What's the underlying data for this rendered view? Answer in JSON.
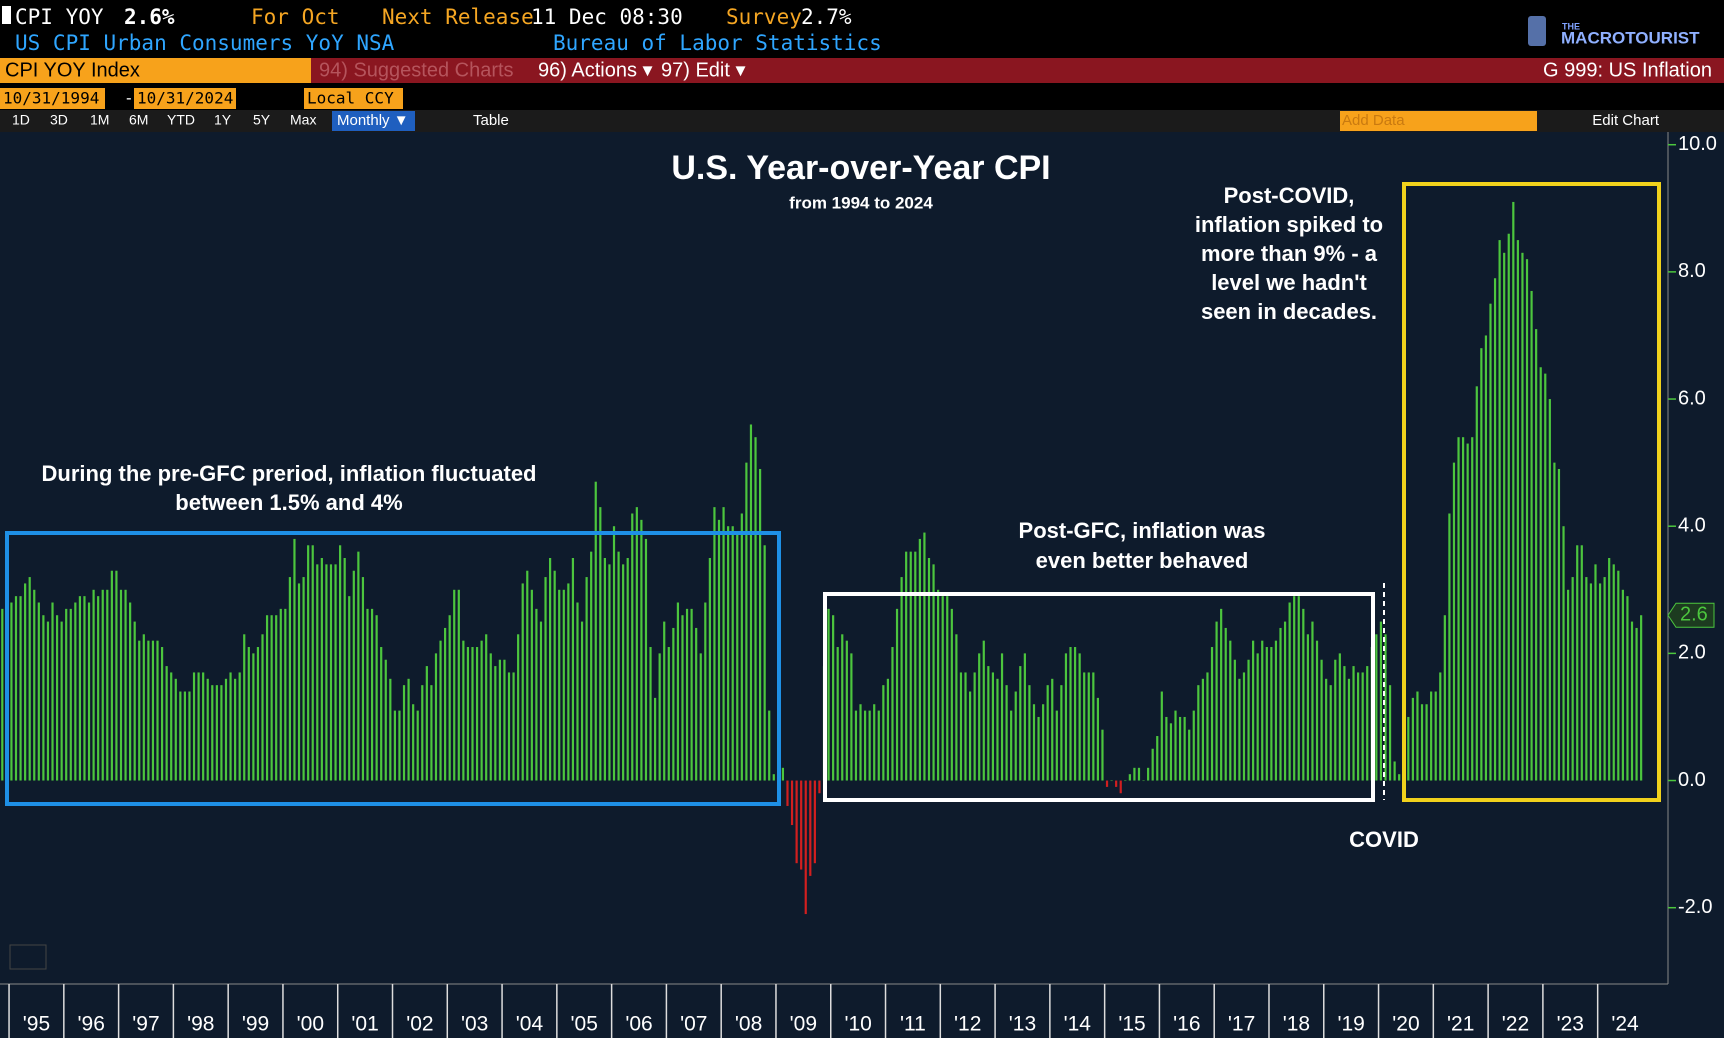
{
  "terminal": {
    "ticker": "CPI YOY",
    "last": "2.6%",
    "period": "For Oct",
    "next_release_label": "Next Release",
    "next_release": "11 Dec 08:30",
    "survey_label": "Survey",
    "survey": "2.7%",
    "description": "US CPI Urban Consumers YoY NSA",
    "source": "Bureau of Labor Statistics",
    "logo_small": "THE",
    "logo": "MACROTOURIST",
    "security": "CPI YOY Index",
    "menu": [
      "94) Suggested Charts",
      "96) Actions ▾",
      "97) Edit ▾"
    ],
    "page": "G 999: US Inflation",
    "start_date": "10/31/1994",
    "date_sep": "-",
    "end_date": "10/31/2024",
    "currency": "Local CCY",
    "ranges": [
      "1D",
      "3D",
      "1M",
      "6M",
      "YTD",
      "1Y",
      "5Y",
      "Max"
    ],
    "frequency": "Monthly ▼",
    "table": "Table",
    "add_data": "Add Data",
    "edit_chart": "Edit Chart"
  },
  "chart_data": {
    "type": "bar",
    "title": "U.S. Year-over-Year CPI",
    "subtitle": "from 1994 to 2024",
    "annotations": [
      {
        "lines": [
          "During the pre-GFC preriod, inflation fluctuated",
          "between 1.5% and 4%"
        ]
      },
      {
        "lines": [
          "Post-GFC, inflation was",
          "even better behaved"
        ]
      },
      {
        "lines": [
          "Post-COVID,",
          "inflation spiked to",
          "more than 9% - a",
          "level we hadn't",
          "seen in decades."
        ]
      },
      {
        "lines": [
          "COVID"
        ]
      }
    ],
    "categories": [
      null,
      null,
      "'95",
      null,
      null,
      null,
      null,
      null,
      null,
      null,
      null,
      null,
      null,
      null,
      "'96",
      null,
      null,
      null,
      null,
      null,
      null,
      null,
      null,
      null,
      null,
      null,
      "'97",
      null,
      null,
      null,
      null,
      null,
      null,
      null,
      null,
      null,
      null,
      null,
      "'98",
      null,
      null,
      null,
      null,
      null,
      null,
      null,
      null,
      null,
      null,
      null,
      "'99",
      null,
      null,
      null,
      null,
      null,
      null,
      null,
      null,
      null,
      null,
      null,
      "'00",
      null,
      null,
      null,
      null,
      null,
      null,
      null,
      null,
      null,
      null,
      null,
      "'01",
      null,
      null,
      null,
      null,
      null,
      null,
      null,
      null,
      null,
      null,
      null,
      "'02",
      null,
      null,
      null,
      null,
      null,
      null,
      null,
      null,
      null,
      null,
      null,
      "'03",
      null,
      null,
      null,
      null,
      null,
      null,
      null,
      null,
      null,
      null,
      null,
      "'04",
      null,
      null,
      null,
      null,
      null,
      null,
      null,
      null,
      null,
      null,
      null,
      "'05",
      null,
      null,
      null,
      null,
      null,
      null,
      null,
      null,
      null,
      null,
      null,
      "'06",
      null,
      null,
      null,
      null,
      null,
      null,
      null,
      null,
      null,
      null,
      null,
      "'07",
      null,
      null,
      null,
      null,
      null,
      null,
      null,
      null,
      null,
      null,
      null,
      "'08",
      null,
      null,
      null,
      null,
      null,
      null,
      null,
      null,
      null,
      null,
      null,
      "'09",
      null,
      null,
      null,
      null,
      null,
      null,
      null,
      null,
      null,
      null,
      null,
      "'10",
      null,
      null,
      null,
      null,
      null,
      null,
      null,
      null,
      null,
      null,
      null,
      "'11",
      null,
      null,
      null,
      null,
      null,
      null,
      null,
      null,
      null,
      null,
      null,
      "'12",
      null,
      null,
      null,
      null,
      null,
      null,
      null,
      null,
      null,
      null,
      null,
      "'13",
      null,
      null,
      null,
      null,
      null,
      null,
      null,
      null,
      null,
      null,
      null,
      "'14",
      null,
      null,
      null,
      null,
      null,
      null,
      null,
      null,
      null,
      null,
      null,
      "'15",
      null,
      null,
      null,
      null,
      null,
      null,
      null,
      null,
      null,
      null,
      null,
      "'16",
      null,
      null,
      null,
      null,
      null,
      null,
      null,
      null,
      null,
      null,
      null,
      "'17",
      null,
      null,
      null,
      null,
      null,
      null,
      null,
      null,
      null,
      null,
      null,
      "'18",
      null,
      null,
      null,
      null,
      null,
      null,
      null,
      null,
      null,
      null,
      null,
      "'19",
      null,
      null,
      null,
      null,
      null,
      null,
      null,
      null,
      null,
      null,
      null,
      "'20",
      null,
      null,
      null,
      null,
      null,
      null,
      null,
      null,
      null,
      null,
      null,
      "'21",
      null,
      null,
      null,
      null,
      null,
      null,
      null,
      null,
      null,
      null,
      null,
      "'22",
      null,
      null,
      null,
      null,
      null,
      null,
      null,
      null,
      null,
      null,
      null,
      "'23",
      null,
      null,
      null,
      null,
      null,
      null,
      null,
      null,
      null,
      null,
      null,
      "'24",
      null,
      null,
      null,
      null,
      null,
      null,
      null,
      null,
      null
    ],
    "values": [
      2.7,
      2.7,
      2.8,
      2.9,
      2.9,
      3.1,
      3.2,
      3.0,
      2.8,
      2.6,
      2.5,
      2.8,
      2.6,
      2.5,
      2.7,
      2.7,
      2.8,
      2.9,
      2.9,
      2.8,
      3.0,
      2.9,
      3.0,
      3.0,
      3.3,
      3.3,
      3.0,
      3.0,
      2.8,
      2.5,
      2.2,
      2.3,
      2.2,
      2.2,
      2.2,
      2.1,
      1.8,
      1.7,
      1.6,
      1.4,
      1.4,
      1.4,
      1.7,
      1.7,
      1.7,
      1.6,
      1.5,
      1.5,
      1.5,
      1.6,
      1.7,
      1.6,
      1.7,
      2.3,
      2.1,
      2.0,
      2.1,
      2.3,
      2.6,
      2.6,
      2.6,
      2.7,
      2.7,
      3.2,
      3.8,
      3.1,
      3.2,
      3.7,
      3.7,
      3.4,
      3.5,
      3.4,
      3.4,
      3.4,
      3.7,
      3.5,
      2.9,
      3.3,
      3.6,
      3.2,
      2.7,
      2.7,
      2.6,
      2.1,
      1.9,
      1.6,
      1.1,
      1.1,
      1.5,
      1.6,
      1.2,
      1.1,
      1.5,
      1.8,
      1.5,
      2.0,
      2.2,
      2.4,
      2.6,
      3.0,
      3.0,
      2.2,
      2.1,
      2.1,
      2.1,
      2.2,
      2.3,
      2.0,
      1.8,
      1.9,
      1.9,
      1.7,
      1.7,
      2.3,
      3.1,
      3.3,
      3.0,
      2.7,
      2.5,
      3.2,
      3.5,
      3.3,
      3.0,
      3.0,
      3.1,
      3.5,
      2.8,
      2.5,
      3.2,
      3.6,
      4.7,
      4.3,
      3.5,
      3.4,
      4.0,
      3.6,
      3.4,
      3.5,
      4.2,
      4.3,
      4.1,
      3.8,
      2.1,
      1.3,
      2.0,
      2.5,
      2.1,
      2.4,
      2.8,
      2.6,
      2.7,
      2.7,
      2.4,
      2.0,
      2.8,
      3.5,
      4.3,
      4.1,
      4.3,
      4.0,
      4.0,
      3.9,
      4.2,
      5.0,
      5.6,
      5.4,
      4.9,
      3.7,
      1.1,
      0.1,
      0.0,
      0.2,
      -0.4,
      -0.7,
      -1.3,
      -1.4,
      -2.1,
      -1.5,
      -1.3,
      -0.2,
      1.8,
      2.7,
      2.6,
      2.1,
      2.3,
      2.2,
      2.0,
      1.1,
      1.2,
      1.1,
      1.1,
      1.2,
      1.1,
      1.5,
      1.6,
      2.1,
      2.7,
      3.2,
      3.6,
      3.6,
      3.6,
      3.8,
      3.9,
      3.5,
      3.4,
      3.0,
      2.9,
      2.9,
      2.7,
      2.3,
      1.7,
      1.7,
      1.4,
      1.7,
      2.0,
      2.2,
      1.8,
      1.7,
      1.6,
      2.0,
      1.5,
      1.1,
      1.4,
      1.8,
      2.0,
      1.5,
      1.2,
      1.0,
      1.2,
      1.5,
      1.6,
      1.1,
      1.5,
      2.0,
      2.1,
      2.1,
      2.0,
      1.7,
      1.7,
      1.7,
      1.3,
      0.8,
      -0.1,
      0.0,
      -0.1,
      -0.2,
      0.0,
      0.1,
      0.2,
      0.2,
      0.0,
      0.2,
      0.5,
      0.7,
      1.4,
      1.0,
      0.9,
      1.1,
      1.0,
      1.0,
      0.8,
      1.1,
      1.5,
      1.6,
      1.7,
      2.1,
      2.5,
      2.7,
      2.4,
      2.2,
      1.9,
      1.6,
      1.7,
      1.9,
      2.2,
      2.0,
      2.2,
      2.1,
      2.1,
      2.2,
      2.4,
      2.5,
      2.8,
      2.9,
      2.9,
      2.7,
      2.3,
      2.5,
      2.2,
      1.9,
      1.6,
      1.5,
      1.9,
      2.0,
      1.8,
      1.6,
      1.8,
      1.7,
      1.7,
      1.8,
      2.1,
      2.3,
      2.5,
      2.3,
      1.5,
      0.3,
      0.1,
      0.6,
      1.0,
      1.3,
      1.4,
      1.2,
      1.2,
      1.4,
      1.4,
      1.7,
      2.6,
      4.2,
      5.0,
      5.4,
      5.4,
      5.3,
      5.4,
      6.2,
      6.8,
      7.0,
      7.5,
      7.9,
      8.5,
      8.3,
      8.6,
      9.1,
      8.5,
      8.3,
      8.2,
      7.7,
      7.1,
      6.5,
      6.4,
      6.0,
      5.0,
      4.9,
      4.0,
      3.0,
      3.2,
      3.7,
      3.7,
      3.2,
      3.1,
      3.4,
      3.1,
      3.2,
      3.5,
      3.4,
      3.3,
      3.0,
      2.9,
      2.5,
      2.4,
      2.6
    ],
    "color": "#4cc63e",
    "negative_color": "#d21f1f",
    "ylim": [
      -3.2,
      10.2
    ],
    "yticks": [
      {
        "value": -2,
        "label": "-2.0"
      },
      {
        "value": 0,
        "label": "0.0"
      },
      {
        "value": 2,
        "label": "2.0"
      },
      {
        "value": 4,
        "label": "4.0"
      },
      {
        "value": 6,
        "label": "6.0"
      },
      {
        "value": 8,
        "label": "8.0"
      },
      {
        "value": 10,
        "label": "10.0"
      }
    ],
    "grid": false
  }
}
